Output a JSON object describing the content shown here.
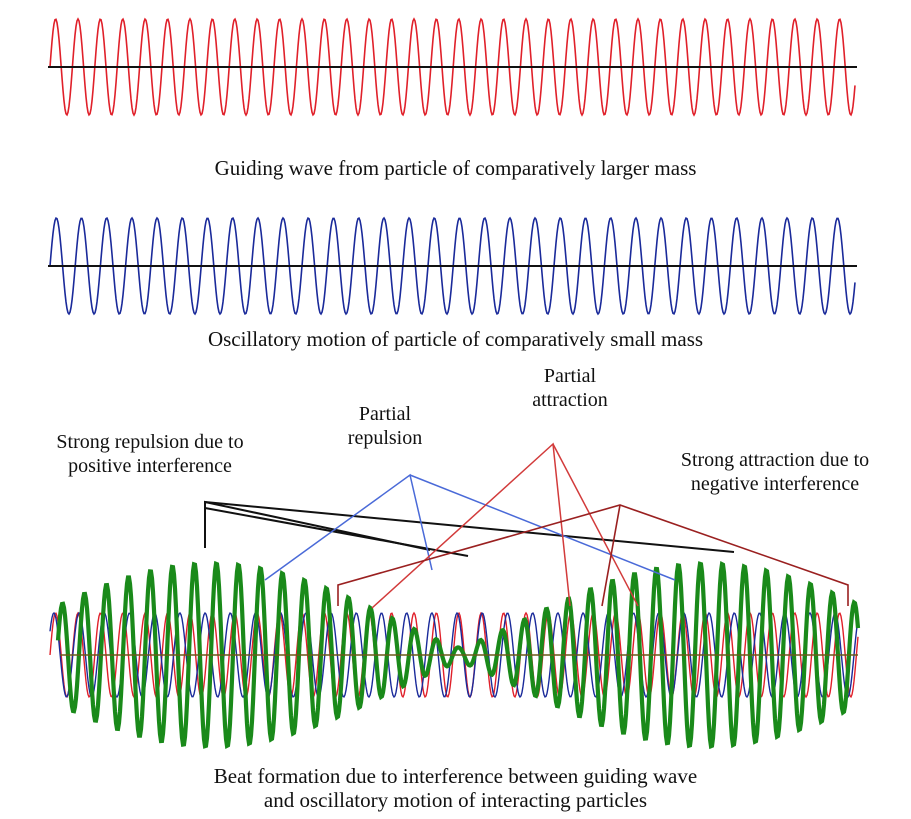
{
  "colors": {
    "guiding_wave": "#e0202a",
    "oscillatory_motion": "#1a2a9a",
    "beat": "#1a8a1a",
    "axis": "#111111",
    "pointer_repulsion": "#4a6ad8",
    "pointer_attraction": "#d23b3b",
    "pointer_strong_attraction": "#9a2020",
    "pointer_strong_repulsion": "#111111"
  },
  "captions": {
    "guiding_wave": "Guiding wave from particle of comparatively larger mass",
    "oscillatory_motion": "Oscillatory motion of particle of comparatively small mass",
    "beat_line1": "Beat formation due to interference between guiding wave",
    "beat_line2": "and oscillatory motion of interacting particles"
  },
  "labels": {
    "strong_repulsion_line1": "Strong repulsion due to",
    "strong_repulsion_line2": "positive interference",
    "partial_repulsion_line1": "Partial",
    "partial_repulsion_line2": "repulsion",
    "partial_attraction_line1": "Partial",
    "partial_attraction_line2": "attraction",
    "strong_attraction_line1": "Strong attraction due to",
    "strong_attraction_line2": "negative interference"
  }
}
